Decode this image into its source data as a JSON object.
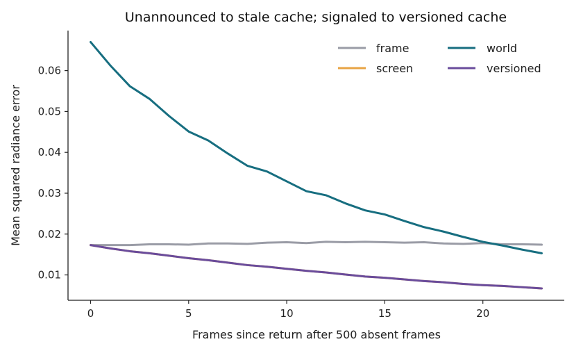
{
  "chart_data": {
    "type": "line",
    "title": "Unannounced to stale cache; signaled to versioned cache",
    "xlabel": "Frames since return after 500 absent frames",
    "ylabel": "Mean squared radiance error",
    "xlim": [
      -1.15,
      24.15
    ],
    "ylim": [
      0.0038,
      0.0698
    ],
    "xticks": [
      0,
      5,
      10,
      15,
      20
    ],
    "yticks": [
      0.01,
      0.02,
      0.03,
      0.04,
      0.05,
      0.06
    ],
    "ytick_labels": [
      "0.01",
      "0.02",
      "0.03",
      "0.04",
      "0.05",
      "0.06"
    ],
    "grid": false,
    "legend_position": "top-right",
    "x": [
      0,
      1,
      2,
      3,
      4,
      5,
      6,
      7,
      8,
      9,
      10,
      11,
      12,
      13,
      14,
      15,
      16,
      17,
      18,
      19,
      20,
      21,
      22,
      23
    ],
    "series": [
      {
        "name": "frame",
        "color": "#9a9ca6",
        "values": [
          0.0173,
          0.0173,
          0.0173,
          0.0175,
          0.0175,
          0.0174,
          0.0177,
          0.0177,
          0.0176,
          0.0179,
          0.018,
          0.0178,
          0.0181,
          0.018,
          0.0181,
          0.018,
          0.0179,
          0.018,
          0.0177,
          0.0176,
          0.0178,
          0.0175,
          0.0175,
          0.0174
        ]
      },
      {
        "name": "screen",
        "color": "#e8a444",
        "values": [
          0.0173,
          0.0165,
          0.0158,
          0.0153,
          0.0147,
          0.0141,
          0.0136,
          0.013,
          0.0124,
          0.012,
          0.0115,
          0.011,
          0.0106,
          0.0101,
          0.0096,
          0.0093,
          0.0089,
          0.0085,
          0.0082,
          0.0078,
          0.0075,
          0.0073,
          0.007,
          0.0067
        ]
      },
      {
        "name": "world",
        "color": "#176e80",
        "values": [
          0.067,
          0.0613,
          0.0562,
          0.0531,
          0.0489,
          0.0451,
          0.0429,
          0.0397,
          0.0367,
          0.0353,
          0.0329,
          0.0305,
          0.0295,
          0.0275,
          0.0258,
          0.0248,
          0.0232,
          0.0217,
          0.0206,
          0.0193,
          0.0181,
          0.0172,
          0.0162,
          0.0153
        ]
      },
      {
        "name": "versioned",
        "color": "#6a4c9c",
        "values": [
          0.0173,
          0.0165,
          0.0158,
          0.0153,
          0.0147,
          0.0141,
          0.0136,
          0.013,
          0.0124,
          0.012,
          0.0115,
          0.011,
          0.0106,
          0.0101,
          0.0096,
          0.0093,
          0.0089,
          0.0085,
          0.0082,
          0.0078,
          0.0075,
          0.0073,
          0.007,
          0.0067
        ]
      }
    ]
  }
}
